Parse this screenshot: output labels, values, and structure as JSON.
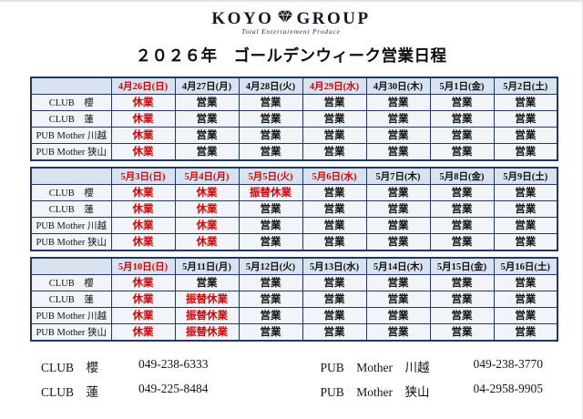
{
  "logo": {
    "text_left": "KOYO",
    "text_right": "GROUP",
    "icon": "diamond-gem-icon",
    "subtitle": "Total Entertainment Produce"
  },
  "title": "２０２６年　ゴールデンウィーク営業日程",
  "colors": {
    "red_text": "#cf0404",
    "table_border": "#1f3864",
    "header_bg": "#d9e3f0",
    "cell_bg": "#f1f5fa"
  },
  "status_colors": {
    "営業": "black",
    "休業": "red",
    "振替休業": "red"
  },
  "tables": [
    {
      "dates": [
        {
          "label": "4月26日(日)",
          "red": true
        },
        {
          "label": "4月27日(月)",
          "red": false
        },
        {
          "label": "4月28日(火)",
          "red": false
        },
        {
          "label": "4月29日(水)",
          "red": true
        },
        {
          "label": "4月30日(木)",
          "red": false
        },
        {
          "label": "5月1日(金)",
          "red": false
        },
        {
          "label": "5月2日(土)",
          "red": false
        }
      ],
      "rows": [
        {
          "label": "CLUB　櫻",
          "cells": [
            "休業",
            "営業",
            "営業",
            "営業",
            "営業",
            "営業",
            "営業"
          ]
        },
        {
          "label": "CLUB　蓮",
          "cells": [
            "休業",
            "営業",
            "営業",
            "営業",
            "営業",
            "営業",
            "営業"
          ]
        },
        {
          "label": "PUB Mother 川越",
          "cells": [
            "休業",
            "営業",
            "営業",
            "営業",
            "営業",
            "営業",
            "営業"
          ]
        },
        {
          "label": "PUB Mother 狭山",
          "cells": [
            "休業",
            "営業",
            "営業",
            "営業",
            "営業",
            "営業",
            "営業"
          ]
        }
      ]
    },
    {
      "dates": [
        {
          "label": "5月3日(日)",
          "red": true
        },
        {
          "label": "5月4日(月)",
          "red": true
        },
        {
          "label": "5月5日(火)",
          "red": true
        },
        {
          "label": "5月6日(水)",
          "red": true
        },
        {
          "label": "5月7日(木)",
          "red": false
        },
        {
          "label": "5月8日(金)",
          "red": false
        },
        {
          "label": "5月9日(土)",
          "red": false
        }
      ],
      "rows": [
        {
          "label": "CLUB　櫻",
          "cells": [
            "休業",
            "休業",
            "振替休業",
            "営業",
            "営業",
            "営業",
            "営業"
          ]
        },
        {
          "label": "CLUB　蓮",
          "cells": [
            "休業",
            "休業",
            "営業",
            "営業",
            "営業",
            "営業",
            "営業"
          ]
        },
        {
          "label": "PUB Mother 川越",
          "cells": [
            "休業",
            "休業",
            "営業",
            "営業",
            "営業",
            "営業",
            "営業"
          ]
        },
        {
          "label": "PUB Mother 狭山",
          "cells": [
            "休業",
            "休業",
            "営業",
            "営業",
            "営業",
            "営業",
            "営業"
          ]
        }
      ]
    },
    {
      "dates": [
        {
          "label": "5月10日(日)",
          "red": true
        },
        {
          "label": "5月11日(月)",
          "red": false
        },
        {
          "label": "5月12日(火)",
          "red": false
        },
        {
          "label": "5月13日(水)",
          "red": false
        },
        {
          "label": "5月14日(木)",
          "red": false
        },
        {
          "label": "5月15日(金)",
          "red": false
        },
        {
          "label": "5月16日(土)",
          "red": false
        }
      ],
      "rows": [
        {
          "label": "CLUB　櫻",
          "cells": [
            "休業",
            "営業",
            "営業",
            "営業",
            "営業",
            "営業",
            "営業"
          ]
        },
        {
          "label": "CLUB　蓮",
          "cells": [
            "休業",
            "振替休業",
            "営業",
            "営業",
            "営業",
            "営業",
            "営業"
          ]
        },
        {
          "label": "PUB Mother 川越",
          "cells": [
            "休業",
            "振替休業",
            "営業",
            "営業",
            "営業",
            "営業",
            "営業"
          ]
        },
        {
          "label": "PUB Mother 狭山",
          "cells": [
            "休業",
            "振替休業",
            "営業",
            "営業",
            "営業",
            "営業",
            "営業"
          ]
        }
      ]
    }
  ],
  "contacts": {
    "left": [
      {
        "name": "CLUB　櫻",
        "phone": "049-238-6333"
      },
      {
        "name": "CLUB　蓮",
        "phone": "049-225-8484"
      }
    ],
    "right": [
      {
        "name": "PUB　Mother　川越",
        "phone": "049-238-3770"
      },
      {
        "name": "PUB　Mother　狭山",
        "phone": "04-2958-9905"
      }
    ]
  }
}
